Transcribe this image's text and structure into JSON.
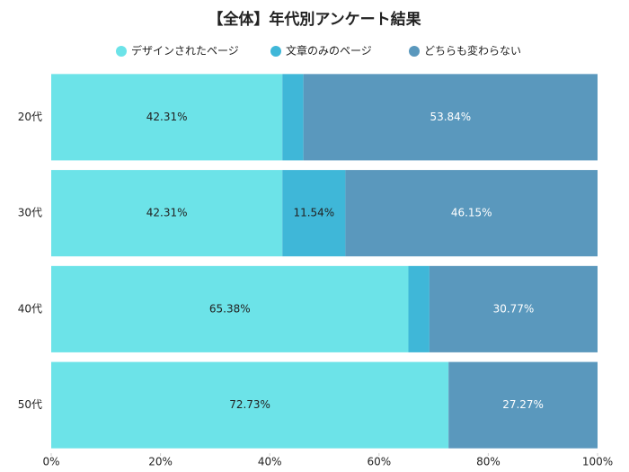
{
  "chart_data": {
    "type": "stacked-bar-horizontal",
    "title": "【全体】年代別アンケート結果",
    "categories": [
      "20代",
      "30代",
      "40代",
      "50代"
    ],
    "series": [
      {
        "name": "デザインされたページ",
        "color": "#6ce3e8",
        "values": [
          42.31,
          42.31,
          65.38,
          72.73
        ],
        "value_labels": [
          "42.31%",
          "42.31%",
          "65.38%",
          "72.73%"
        ]
      },
      {
        "name": "文章のみのページ",
        "color": "#3fb7d8",
        "values": [
          3.85,
          11.54,
          3.85,
          0
        ],
        "value_labels": [
          null,
          "11.54%",
          null,
          null
        ]
      },
      {
        "name": "どちらも変わらない",
        "color": "#5a98bd",
        "values": [
          53.84,
          46.15,
          30.77,
          27.27
        ],
        "value_labels": [
          "53.84%",
          "46.15%",
          "30.77%",
          "27.27%"
        ]
      }
    ],
    "xlim": [
      0,
      100
    ],
    "xticks": [
      {
        "value": 0,
        "label": "0%"
      },
      {
        "value": 20,
        "label": "20%"
      },
      {
        "value": 40,
        "label": "40%"
      },
      {
        "value": 60,
        "label": "60%"
      },
      {
        "value": 80,
        "label": "80%"
      },
      {
        "value": 100,
        "label": "100%"
      }
    ],
    "legend": "top"
  }
}
